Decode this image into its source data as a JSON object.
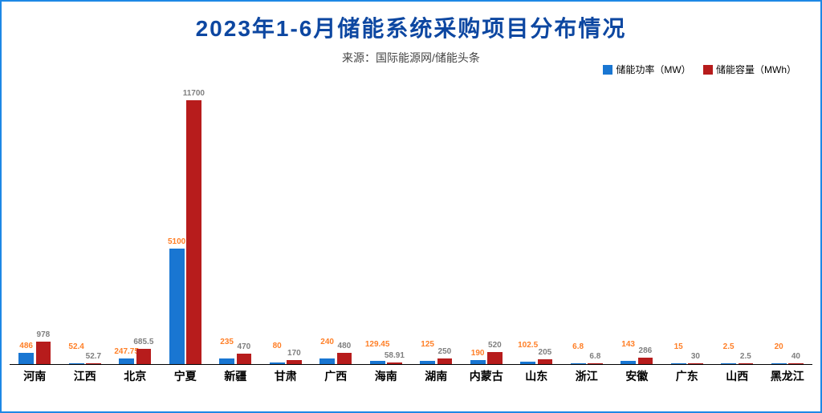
{
  "title": "2023年1-6月储能系统采购项目分布情况",
  "subtitle": "来源：国际能源网/储能头条",
  "title_color": "#0d47a1",
  "legend": {
    "seriesA": {
      "label": "储能功率（MW）",
      "color": "#1976d2",
      "value_color": "#ff7f27"
    },
    "seriesB": {
      "label": "储能容量（MWh）",
      "color": "#b71c1c",
      "value_color": "#7f7f7f"
    }
  },
  "ymax": 12500,
  "categories": [
    "河南",
    "江西",
    "北京",
    "宁夏",
    "新疆",
    "甘肃",
    "广西",
    "海南",
    "湖南",
    "内蒙古",
    "山东",
    "浙江",
    "安徽",
    "广东",
    "山西",
    "黑龙江"
  ],
  "seriesA_values": [
    486,
    52.4,
    247.75,
    5100,
    235,
    80,
    240,
    129.45,
    125,
    190,
    102.5,
    6.8,
    143,
    15,
    2.5,
    20
  ],
  "seriesB_values": [
    978,
    52.7,
    685.5,
    11700,
    470,
    170,
    480,
    58.91,
    250,
    520,
    205,
    6.8,
    286,
    30,
    2.5,
    40
  ],
  "seriesA_labels": [
    "486",
    "52.4",
    "247.75",
    "5100",
    "235",
    "80",
    "240",
    "129.45",
    "125",
    "190",
    "102.5",
    "6.8",
    "143",
    "15",
    "2.5",
    "20"
  ],
  "seriesB_labels": [
    "978",
    "52.7",
    "685.5",
    "11700",
    "470",
    "170",
    "480",
    "58.91",
    "250",
    "520",
    "205",
    "6.8",
    "286",
    "30",
    "2.5",
    "40"
  ],
  "bar_width_pct": 30,
  "background_color": "#ffffff",
  "border_color": "#1e88e5",
  "x_label_fontsize": 14,
  "value_label_fontsize": 10,
  "title_fontsize": 28
}
